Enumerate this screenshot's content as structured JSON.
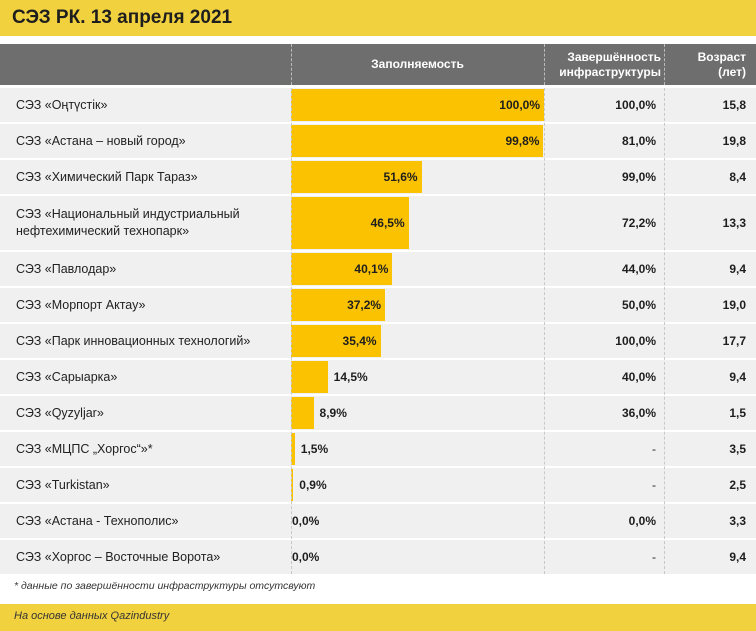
{
  "title": "СЭЗ РК. 13 апреля 2021",
  "headers": {
    "occupancy": "Заполняемость",
    "infra_line1": "Завершённость",
    "infra_line2": "инфраструктуры",
    "age_line1": "Возраст",
    "age_line2": "(лет)"
  },
  "colors": {
    "title_bar": "#f2d13f",
    "header_bg": "#6e6e6e",
    "bar": "#fbc202",
    "row_bg": "#f0f0f0"
  },
  "chart_data": {
    "type": "bar",
    "orientation": "horizontal",
    "xlim": [
      0,
      100
    ],
    "rows": [
      {
        "name": "СЭЗ «Оңтүстік»",
        "occupancy": 100.0,
        "occupancy_label": "100,0%",
        "infra": "100,0%",
        "age": "15,8"
      },
      {
        "name": "СЭЗ «Астана – новый город»",
        "occupancy": 99.8,
        "occupancy_label": "99,8%",
        "infra": "81,0%",
        "age": "19,8"
      },
      {
        "name": "СЭЗ «Химический Парк Тараз»",
        "occupancy": 51.6,
        "occupancy_label": "51,6%",
        "infra": "99,0%",
        "age": "8,4"
      },
      {
        "name": "СЭЗ «Национальный индустриальный нефтехимический технопарк»",
        "occupancy": 46.5,
        "occupancy_label": "46,5%",
        "infra": "72,2%",
        "age": "13,3"
      },
      {
        "name": "СЭЗ «Павлодар»",
        "occupancy": 40.1,
        "occupancy_label": "40,1%",
        "infra": "44,0%",
        "age": "9,4"
      },
      {
        "name": "СЭЗ «Морпорт Актау»",
        "occupancy": 37.2,
        "occupancy_label": "37,2%",
        "infra": "50,0%",
        "age": "19,0"
      },
      {
        "name": "СЭЗ «Парк инновационных технологий»",
        "occupancy": 35.4,
        "occupancy_label": "35,4%",
        "infra": "100,0%",
        "age": "17,7"
      },
      {
        "name": "СЭЗ «Сарыарка»",
        "occupancy": 14.5,
        "occupancy_label": "14,5%",
        "infra": "40,0%",
        "age": "9,4"
      },
      {
        "name": "СЭЗ «Qyzyljar»",
        "occupancy": 8.9,
        "occupancy_label": "8,9%",
        "infra": "36,0%",
        "age": "1,5"
      },
      {
        "name": "СЭЗ «МЦПС „Хоргос“»*",
        "occupancy": 1.5,
        "occupancy_label": "1,5%",
        "infra": "-",
        "age": "3,5"
      },
      {
        "name": "СЭЗ «Turkistan»",
        "occupancy": 0.9,
        "occupancy_label": "0,9%",
        "infra": "-",
        "age": "2,5"
      },
      {
        "name": "СЭЗ «Астана - Технополис»",
        "occupancy": 0.0,
        "occupancy_label": "0,0%",
        "infra": "0,0%",
        "age": "3,3"
      },
      {
        "name": "СЭЗ «Хоргос – Восточные Ворота»",
        "occupancy": 0.0,
        "occupancy_label": "0,0%",
        "infra": "-",
        "age": "9,4"
      }
    ]
  },
  "footnote": "* данные по завершённости инфраструктуры отсутсвуют",
  "source": "На основе данных Qazindustry"
}
